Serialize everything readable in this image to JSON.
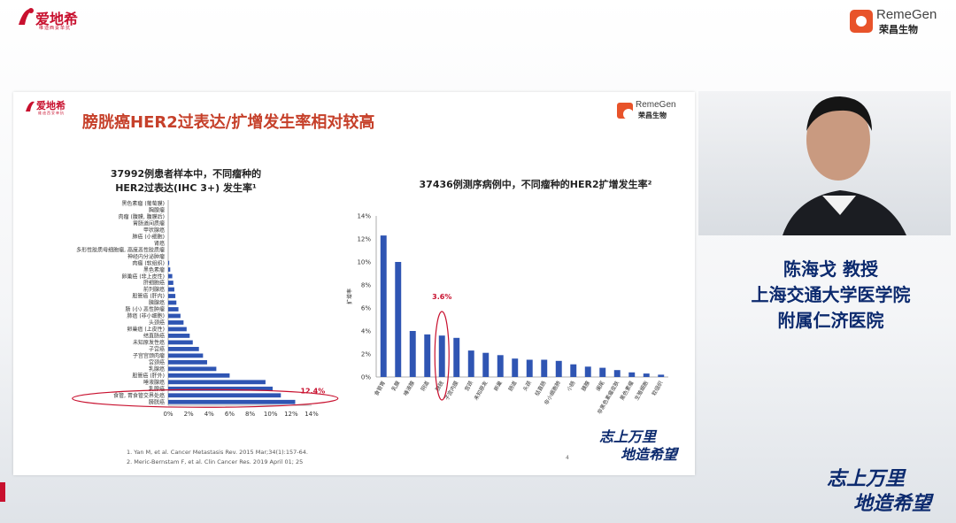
{
  "window": {
    "brand_logo_text": "爱地希",
    "brand_logo_sub": "维迪西妥单抗",
    "partner_logo_name": "RemeGen",
    "partner_logo_cn": "荣昌生物"
  },
  "slide": {
    "title": "膀胱癌HER2过表达/扩增发生率相对较高",
    "left_chart_title_line1": "37992例患者样本中，不同瘤种的",
    "left_chart_title_line2": "HER2过表达(IHC 3+) 发生率¹",
    "right_chart_title": "37436例测序病例中，不同瘤种的HER2扩增发生率²",
    "references": [
      "1. Yan M, et al. Cancer Metastasis Rev. 2015 Mar;34(1):157-64.",
      "2. Meric-Bernstam F, et al. Clin Cancer Res. 2019 April 01; 25"
    ],
    "page_number": "4",
    "slogan_line1": "志上万里",
    "slogan_line2": "地造希望"
  },
  "speaker": {
    "name_title": "陈海戈  教授",
    "affiliation_line1": "上海交通大学医学院",
    "affiliation_line2": "附属仁济医院"
  },
  "overlay": {
    "slogan_line1": "志上万里",
    "slogan_line2": "地造希望"
  },
  "chart_data": [
    {
      "type": "bar",
      "orientation": "horizontal",
      "title": "37992例患者样本中，不同瘤种的HER2过表达(IHC 3+) 发生率¹",
      "categories": [
        "黑色素瘤 (葡萄膜)",
        "胸腺瘤",
        "肉瘤 (腹膜, 腹膜后)",
        "胃肠道间质瘤",
        "甲状腺癌",
        "肺癌 (小细胞)",
        "肾癌",
        "多形性胶质母细胞瘤, 高度恶性胶质瘤",
        "神经内分泌肿瘤",
        "肉瘤 (软组织)",
        "黑色素瘤",
        "卵巢癌 (非上皮性)",
        "肝细胞癌",
        "前列腺癌",
        "胆管癌 (肝内)",
        "胰腺癌",
        "肠 (小) 恶性肿瘤",
        "肺癌 (非小细胞)",
        "头颈癌",
        "卵巢癌 (上皮性)",
        "结直肠癌",
        "未知原发性癌",
        "子宫癌",
        "子宫宫颈肉瘤",
        "宫颈癌",
        "乳腺癌",
        "胆管癌 (肝外)",
        "唾液腺癌",
        "乳腺癌",
        "食管, 胃食管交界处癌",
        "膀胱癌"
      ],
      "values": [
        0,
        0,
        0,
        0,
        0,
        0,
        0,
        0,
        0,
        0.1,
        0.2,
        0.4,
        0.5,
        0.6,
        0.7,
        0.8,
        1.0,
        1.2,
        1.5,
        1.8,
        2.1,
        2.4,
        3.0,
        3.4,
        3.8,
        4.7,
        6.0,
        9.5,
        10.2,
        11.0,
        12.4
      ],
      "highlight_label": "12.4%",
      "xlabel": "",
      "ticks": [
        "0%",
        "2%",
        "4%",
        "6%",
        "8%",
        "10%",
        "12%",
        "14%"
      ],
      "xlim": [
        0,
        14
      ]
    },
    {
      "type": "bar",
      "title": "37436例测序病例中，不同瘤种的HER2扩增发生率²",
      "categories": [
        "食管胃",
        "乳腺",
        "唾液腺",
        "阴道",
        "膀胱",
        "子宫内膜",
        "宫颈",
        "未知原发",
        "卵巢",
        "肠道",
        "头颈",
        "结直肠",
        "非小细胞肺",
        "小肠",
        "胰腺",
        "阑尾",
        "非黑色素瘤皮肤",
        "黑色素瘤",
        "生殖细胞",
        "软组织"
      ],
      "values": [
        12.3,
        10.0,
        4.0,
        3.7,
        3.6,
        3.4,
        2.3,
        2.1,
        1.9,
        1.6,
        1.5,
        1.5,
        1.4,
        1.1,
        0.9,
        0.8,
        0.6,
        0.4,
        0.3,
        0.2
      ],
      "highlight_label": "3.6%",
      "ylabel": "扩增率",
      "ticks": [
        "0%",
        "2%",
        "4%",
        "6%",
        "8%",
        "10%",
        "12%",
        "14%"
      ],
      "ylim": [
        0,
        14
      ]
    }
  ],
  "colors": {
    "bar": "#2f55b3",
    "highlight": "#c8102e",
    "title_red": "#c6402a",
    "speaker_blue": "#0c2a6e"
  }
}
